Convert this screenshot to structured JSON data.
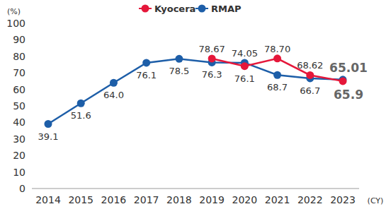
{
  "chart_data": {
    "type": "line",
    "y_label": "(%)",
    "x_label": "(CY)",
    "categories": [
      "2014",
      "2015",
      "2016",
      "2017",
      "2018",
      "2019",
      "2020",
      "2021",
      "2022",
      "2023"
    ],
    "series": [
      {
        "name": "Kyocera",
        "color": "#e5173a",
        "marker": "circle",
        "values": [
          null,
          null,
          null,
          null,
          null,
          78.67,
          74.05,
          78.7,
          68.62,
          65.01
        ],
        "value_labels": [
          null,
          null,
          null,
          null,
          null,
          "78.67",
          "74.05",
          "78.70",
          "68.62",
          "65.01"
        ]
      },
      {
        "name": "RMAP",
        "color": "#1d5ea8",
        "marker": "circle",
        "values": [
          39.1,
          51.6,
          64,
          76.1,
          78.5,
          76.3,
          76.1,
          68.7,
          66.7,
          65.9
        ],
        "value_labels": [
          "39.1",
          "51.6",
          "64.0",
          "76.1",
          "78.5",
          "76.3",
          "76.1",
          "68.7",
          "66.7",
          "65.9"
        ]
      }
    ],
    "ylim": [
      0,
      100
    ],
    "yticks": [
      0,
      10,
      20,
      30,
      40,
      50,
      60,
      70,
      80,
      90,
      100
    ],
    "grid": false,
    "legend": "top",
    "data_labels": true
  }
}
